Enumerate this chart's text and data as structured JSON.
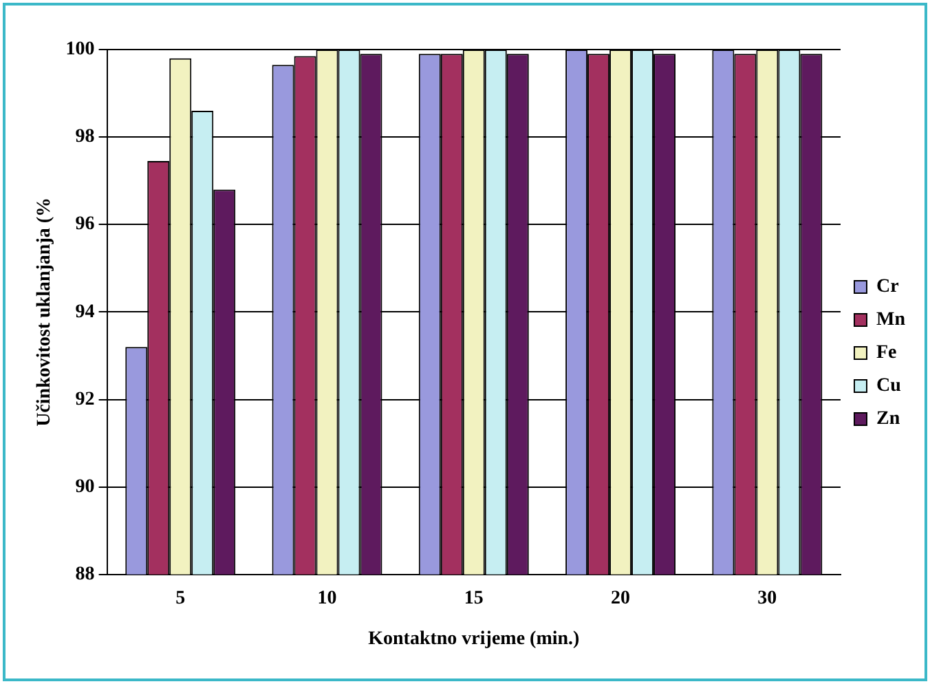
{
  "chart_data": {
    "type": "bar",
    "xlabel": "Kontaktno vrijeme (min.)",
    "ylabel": "Učinkovitost uklanjanja (%",
    "categories": [
      "5",
      "10",
      "15",
      "20",
      "30"
    ],
    "series": [
      {
        "name": "Cr",
        "color": "#9999dd",
        "values": [
          93.2,
          99.65,
          99.9,
          100,
          100
        ]
      },
      {
        "name": "Mn",
        "color": "#a3305f",
        "values": [
          97.45,
          99.85,
          99.9,
          99.9,
          99.9
        ]
      },
      {
        "name": "Fe",
        "color": "#f2f2c0",
        "values": [
          99.8,
          100,
          100,
          100,
          100
        ]
      },
      {
        "name": "Cu",
        "color": "#c6eef2",
        "values": [
          98.6,
          100,
          100,
          100,
          100
        ]
      },
      {
        "name": "Zn",
        "color": "#5e1a5e",
        "values": [
          96.8,
          99.9,
          99.9,
          99.9,
          99.9
        ]
      }
    ],
    "ylim": [
      88,
      100
    ],
    "yticks": [
      88,
      90,
      92,
      94,
      96,
      98,
      100
    ],
    "grid": "y",
    "legend": "right"
  }
}
